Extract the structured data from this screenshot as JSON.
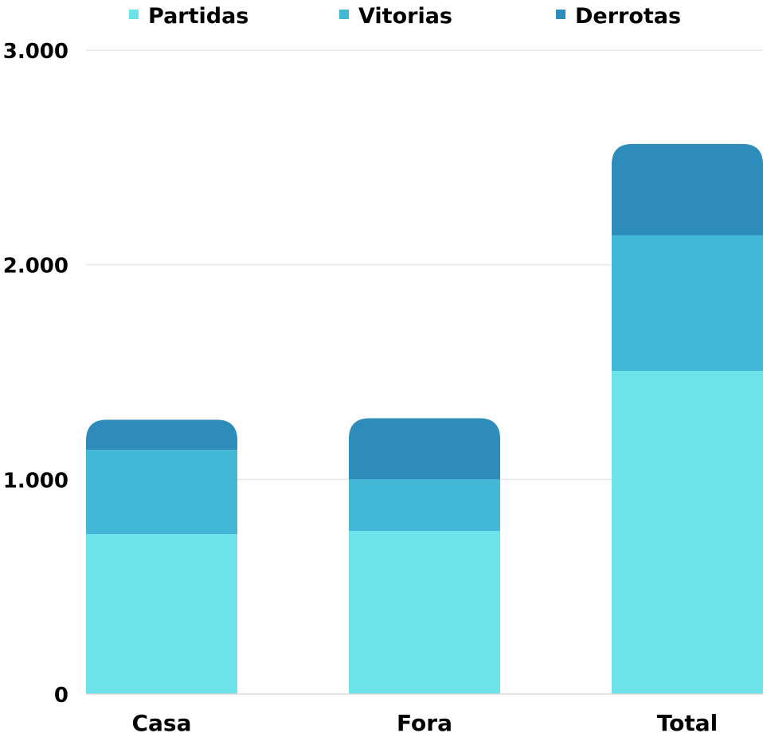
{
  "chart_data": {
    "type": "bar",
    "stacked": true,
    "categories": [
      "Casa",
      "Fora",
      "Total"
    ],
    "series": [
      {
        "name": "Partidas",
        "values": [
          745,
          760,
          1505
        ],
        "color": "#6be3e8"
      },
      {
        "name": "Vitorias",
        "values": [
          393,
          240,
          633
        ],
        "color": "#42b7d6"
      },
      {
        "name": "Derrotas",
        "values": [
          140,
          285,
          425
        ],
        "color": "#2d8cba"
      }
    ],
    "ylim": [
      0,
      3000
    ],
    "yticks": [
      0,
      1000,
      2000,
      3000
    ],
    "ytick_labels": [
      "0",
      "1.000",
      "2.000",
      "3.000"
    ],
    "grid": true,
    "legend": "top"
  }
}
